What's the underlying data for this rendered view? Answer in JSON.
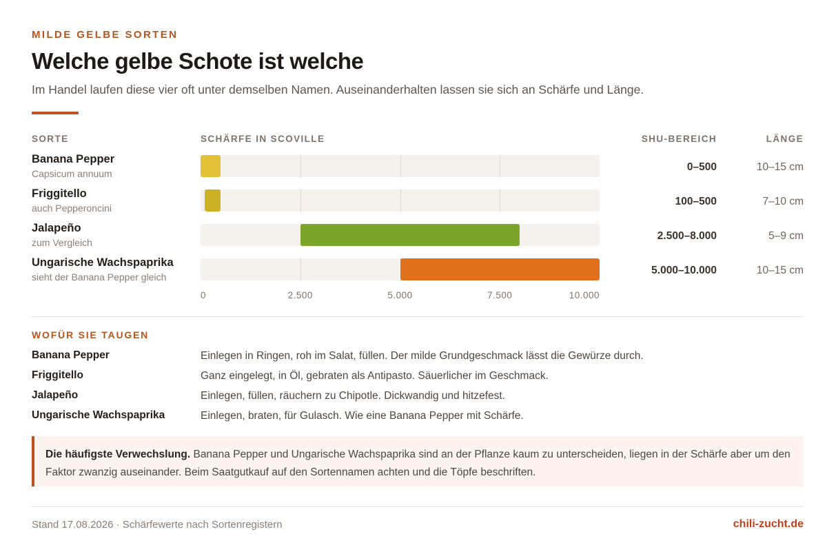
{
  "header": {
    "eyebrow": "MILDE GELBE SORTEN",
    "title": "Welche gelbe Schote ist welche",
    "subtitle": "Im Handel laufen diese vier oft unter demselben Namen. Auseinanderhalten lassen sie sich an Schärfe und Länge."
  },
  "columns": {
    "sorte": "SORTE",
    "scoville": "SCHÄRFE IN SCOVILLE",
    "shu": "SHU-BEREICH",
    "laenge": "LÄNGE"
  },
  "chart_data": {
    "type": "bar",
    "orientation": "horizontal-range",
    "xlim": [
      0,
      10000
    ],
    "xticks": [
      "0",
      "2.500",
      "5.000",
      "7.500",
      "10.000"
    ],
    "xtick_values": [
      0,
      2500,
      5000,
      7500,
      10000
    ],
    "grid": true,
    "rows": [
      {
        "name": "Banana Pepper",
        "sub": "Capsicum annuum",
        "min": 0,
        "max": 500,
        "shu_label": "0–500",
        "length": "10–15 cm",
        "color": "#e3c23a"
      },
      {
        "name": "Friggitello",
        "sub": "auch Pepperoncini",
        "min": 100,
        "max": 500,
        "shu_label": "100–500",
        "length": "7–10 cm",
        "color": "#ccb125"
      },
      {
        "name": "Jalapeño",
        "sub": "zum Vergleich",
        "min": 2500,
        "max": 8000,
        "shu_label": "2.500–8.000",
        "length": "5–9 cm",
        "color": "#7aa52a"
      },
      {
        "name": "Ungarische Wachspaprika",
        "sub": "sieht der Banana Pepper gleich",
        "min": 5000,
        "max": 10000,
        "shu_label": "5.000–10.000",
        "length": "10–15 cm",
        "color": "#e0701c"
      }
    ]
  },
  "uses": {
    "heading": "WOFÜR SIE TAUGEN",
    "items": [
      {
        "name": "Banana Pepper",
        "text": "Einlegen in Ringen, roh im Salat, füllen. Der milde Grundgeschmack lässt die Gewürze durch."
      },
      {
        "name": "Friggitello",
        "text": "Ganz eingelegt, in Öl, gebraten als Antipasto. Säuerlicher im Geschmack."
      },
      {
        "name": "Jalapeño",
        "text": "Einlegen, füllen, räuchern zu Chipotle. Dickwandig und hitzefest."
      },
      {
        "name": "Ungarische Wachspaprika",
        "text": "Einlegen, braten, für Gulasch. Wie eine Banana Pepper mit Schärfe."
      }
    ]
  },
  "callout": {
    "lead": "Die häufigste Verwechslung.",
    "text": " Banana Pepper und Ungarische Wachspaprika sind an der Pflanze kaum zu unterscheiden, liegen in der Schärfe aber um den Faktor zwanzig auseinander. Beim Saatgutkauf auf den Sortennamen achten und die Töpfe beschriften."
  },
  "footer": {
    "stand": "Stand 17.08.2026 · Schärfewerte nach Sortenregistern",
    "site": "chili-zucht.de"
  },
  "colors": {
    "accent": "#c4501e",
    "track": "#f5f2ee"
  }
}
